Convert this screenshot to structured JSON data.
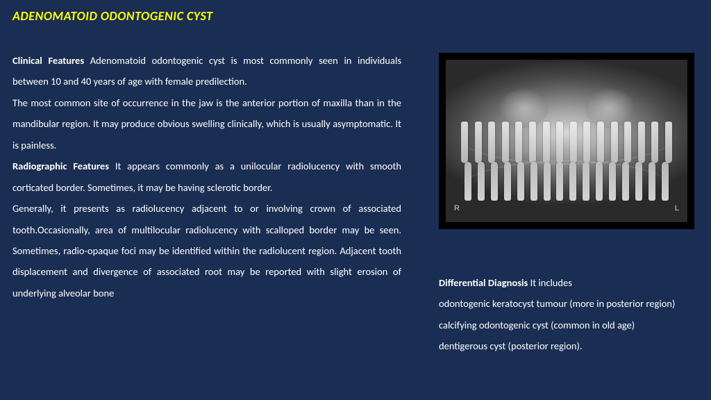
{
  "title": "ADENOMATOID ODONTOGENIC CYST",
  "left": {
    "h1": "Clinical Features",
    "p1a": " Adenomatoid odontogenic cyst is most commonly seen in individuals between 10 and 40 years of age with female predilection.",
    "p1b": "The most common site of occurrence in the jaw is the anterior portion of maxilla than in the mandibular region. It may produce obvious swelling clinically, which is usually asymptomatic. It is painless.",
    "h2": "Radiographic Features",
    "p2a": " It appears commonly as a unilocular radiolucency with smooth corticated border. Sometimes, it may be having sclerotic border.",
    "p2b": "Generally, it presents as radiolucency adjacent to or involving crown of associated tooth.Occasionally, area of multilocular radiolucency with scalloped border may be seen. Sometimes, radio-opaque foci may be identified within the radiolucent region. Adjacent tooth displacement and divergence of associated root may be reported with slight erosion of underlying alveolar bone"
  },
  "right": {
    "h": "Differential Diagnosis",
    "lead": " It includes",
    "l1": "odontogenic keratocyst tumour (more in posterior region)",
    "l2": "calcifying odontogenic cyst (common in old age)",
    "l3": "dentigerous cyst (posterior region)."
  },
  "markers": {
    "R": "R",
    "L": "L"
  }
}
